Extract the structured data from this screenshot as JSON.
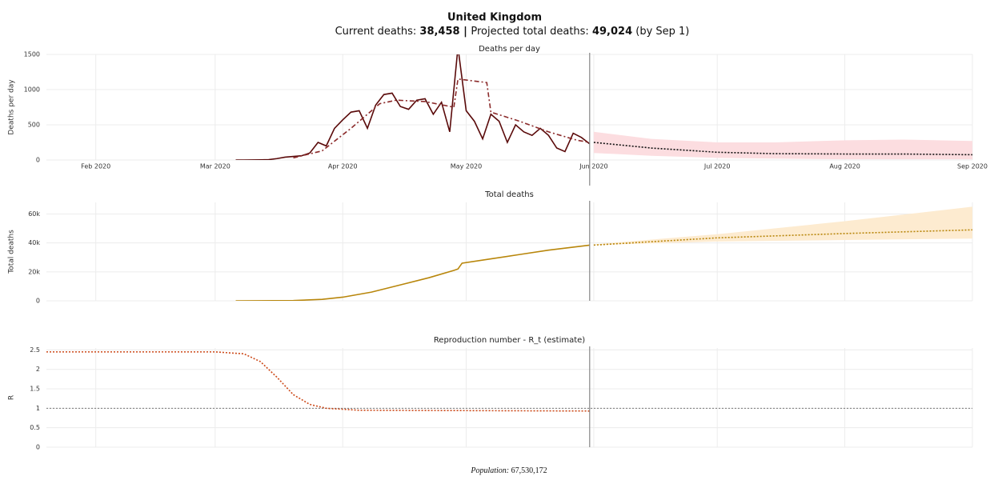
{
  "header": {
    "title": "United Kingdom",
    "subtitle": [
      "Current deaths: ",
      "38,458",
      " | ",
      "Projected total deaths: ",
      "49,024",
      " (by Sep 1)"
    ]
  },
  "footer": {
    "label": "Population:",
    "value": "67,530,172"
  },
  "chart_data": [
    {
      "type": "line",
      "title": "Deaths per day",
      "y_label": "Deaths per day",
      "xlim": [
        "2020-01-20",
        "2020-09-01"
      ],
      "xticks": [
        {
          "value": "2020-02-01",
          "label": "Feb 2020"
        },
        {
          "value": "2020-03-01",
          "label": "Mar 2020"
        },
        {
          "value": "2020-04-01",
          "label": "Apr 2020"
        },
        {
          "value": "2020-05-01",
          "label": "May 2020"
        },
        {
          "value": "2020-06-01",
          "label": "Jun 2020"
        },
        {
          "value": "2020-07-01",
          "label": "Jul 2020"
        },
        {
          "value": "2020-08-01",
          "label": "Aug 2020"
        },
        {
          "value": "2020-09-01",
          "label": "Sep 2020"
        }
      ],
      "ylim": [
        0,
        1500
      ],
      "yticks": [
        0,
        500,
        1000,
        1500
      ],
      "grid": true,
      "vline": "2020-05-31",
      "bands": [
        {
          "color": "#fcdde0",
          "x": [
            "2020-06-01",
            "2020-06-15",
            "2020-07-01",
            "2020-07-15",
            "2020-08-01",
            "2020-08-15",
            "2020-09-01"
          ],
          "upper": [
            400,
            300,
            250,
            250,
            280,
            290,
            270
          ],
          "lower": [
            100,
            60,
            30,
            20,
            10,
            10,
            10
          ]
        }
      ],
      "series": [
        {
          "color": "#5a0a0a",
          "style": "solid",
          "x": [
            "2020-03-06",
            "2020-03-08",
            "2020-03-10",
            "2020-03-12",
            "2020-03-14",
            "2020-03-16",
            "2020-03-18",
            "2020-03-20",
            "2020-03-22",
            "2020-03-24",
            "2020-03-26",
            "2020-03-28",
            "2020-03-30",
            "2020-04-01",
            "2020-04-03",
            "2020-04-05",
            "2020-04-07",
            "2020-04-09",
            "2020-04-11",
            "2020-04-13",
            "2020-04-15",
            "2020-04-17",
            "2020-04-19",
            "2020-04-21",
            "2020-04-23",
            "2020-04-25",
            "2020-04-27",
            "2020-04-29",
            "2020-05-01",
            "2020-05-03",
            "2020-05-05",
            "2020-05-07",
            "2020-05-09",
            "2020-05-11",
            "2020-05-13",
            "2020-05-15",
            "2020-05-17",
            "2020-05-19",
            "2020-05-21",
            "2020-05-23",
            "2020-05-25",
            "2020-05-27",
            "2020-05-29",
            "2020-05-31"
          ],
          "values": [
            0,
            0,
            1,
            2,
            5,
            20,
            40,
            50,
            60,
            100,
            250,
            200,
            450,
            570,
            680,
            700,
            450,
            780,
            930,
            950,
            760,
            720,
            850,
            870,
            650,
            820,
            400,
            1600,
            700,
            550,
            300,
            650,
            550,
            250,
            500,
            400,
            350,
            450,
            350,
            170,
            120,
            380,
            320,
            230
          ]
        },
        {
          "color": "#8b2a2a",
          "style": "dashdot",
          "x": [
            "2020-03-20",
            "2020-03-27",
            "2020-04-03",
            "2020-04-10",
            "2020-04-14",
            "2020-04-21",
            "2020-04-28",
            "2020-04-29",
            "2020-05-06",
            "2020-05-07",
            "2020-05-14",
            "2020-05-21",
            "2020-05-28",
            "2020-05-31"
          ],
          "values": [
            30,
            130,
            450,
            800,
            850,
            830,
            750,
            1150,
            1100,
            680,
            550,
            400,
            280,
            250
          ]
        },
        {
          "color": "#111111",
          "style": "dotted",
          "x": [
            "2020-06-01",
            "2020-06-15",
            "2020-07-01",
            "2020-07-15",
            "2020-08-01",
            "2020-08-15",
            "2020-09-01"
          ],
          "values": [
            250,
            170,
            110,
            90,
            85,
            85,
            75
          ]
        }
      ]
    },
    {
      "type": "line",
      "title": "Total deaths",
      "y_label": "Total deaths",
      "xlim": [
        "2020-01-20",
        "2020-09-01"
      ],
      "xticks": [
        "2020-02-01",
        "2020-03-01",
        "2020-04-01",
        "2020-05-01",
        "2020-06-01",
        "2020-07-01",
        "2020-08-01",
        "2020-09-01"
      ],
      "ylim": [
        0,
        68000
      ],
      "yticks": [
        0,
        {
          "value": 20000,
          "label": "20k"
        },
        {
          "value": 40000,
          "label": "40k"
        },
        {
          "value": 60000,
          "label": "60k"
        }
      ],
      "grid": true,
      "vline": "2020-05-31",
      "bands": [
        {
          "color": "#fdebd0",
          "x": [
            "2020-06-01",
            "2020-07-01",
            "2020-08-01",
            "2020-09-01"
          ],
          "upper": [
            39000,
            46000,
            55000,
            65000
          ],
          "lower": [
            38500,
            41000,
            42000,
            43000
          ]
        }
      ],
      "series": [
        {
          "color": "#b8860b",
          "style": "solid",
          "x": [
            "2020-03-06",
            "2020-03-20",
            "2020-03-27",
            "2020-04-01",
            "2020-04-08",
            "2020-04-15",
            "2020-04-22",
            "2020-04-28",
            "2020-04-29",
            "2020-04-30",
            "2020-05-07",
            "2020-05-14",
            "2020-05-21",
            "2020-05-31"
          ],
          "values": [
            0,
            200,
            1000,
            2500,
            6000,
            11000,
            16000,
            21000,
            22000,
            26000,
            29000,
            32000,
            35000,
            38458
          ]
        },
        {
          "color": "#b8860b",
          "style": "dotted",
          "x": [
            "2020-06-01",
            "2020-07-01",
            "2020-08-01",
            "2020-09-01"
          ],
          "values": [
            38500,
            43500,
            46500,
            49024
          ]
        }
      ]
    },
    {
      "type": "line",
      "title": "Reproduction number - R_t (estimate)",
      "y_label": "R",
      "xlim": [
        "2020-01-20",
        "2020-09-01"
      ],
      "xticks": [
        "2020-02-01",
        "2020-03-01",
        "2020-04-01",
        "2020-05-01",
        "2020-06-01",
        "2020-07-01",
        "2020-08-01",
        "2020-09-01"
      ],
      "ylim": [
        0,
        2.55
      ],
      "yticks": [
        0,
        0.5,
        1,
        1.5,
        2,
        2.5
      ],
      "grid": true,
      "vline": "2020-05-31",
      "hline": 1,
      "bands": [],
      "series": [
        {
          "color": "#cc4a1a",
          "style": "dotted",
          "x": [
            "2020-01-20",
            "2020-03-01",
            "2020-03-08",
            "2020-03-12",
            "2020-03-16",
            "2020-03-20",
            "2020-03-24",
            "2020-03-28",
            "2020-04-05",
            "2020-05-31"
          ],
          "values": [
            2.45,
            2.45,
            2.4,
            2.2,
            1.8,
            1.35,
            1.1,
            1.0,
            0.95,
            0.93
          ]
        }
      ]
    }
  ]
}
